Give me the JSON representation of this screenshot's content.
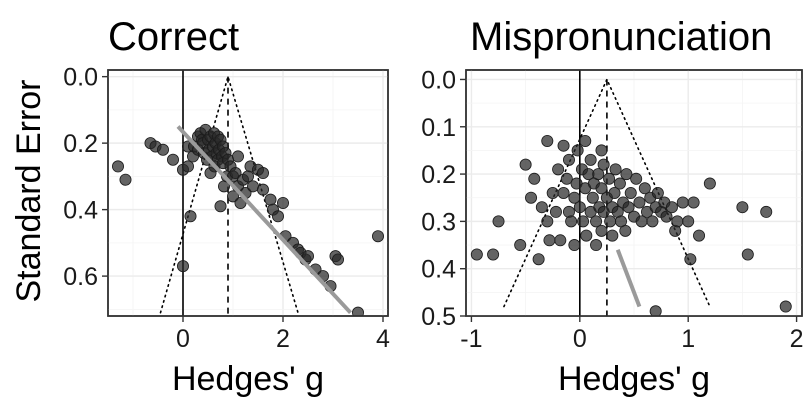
{
  "ylabel": "Standard Error",
  "chart_data": [
    {
      "type": "scatter",
      "title": "Correct",
      "xlabel": "Hedges' g",
      "ylabel": "Standard Error",
      "xlim": [
        -1.5,
        4.1
      ],
      "ylim": [
        0.72,
        -0.02
      ],
      "y_reversed": true,
      "xticks": [
        0,
        2,
        4
      ],
      "xtick_labels": [
        "0",
        "2",
        "4"
      ],
      "yticks": [
        0.0,
        0.2,
        0.4,
        0.6
      ],
      "ytick_labels": [
        "0.0",
        "0.2",
        "0.4",
        "0.6"
      ],
      "grid": true,
      "null_effect": 0,
      "mean_effect": 0.9,
      "funnel": [
        [
          -0.45,
          0.71
        ],
        [
          0.9,
          0.0
        ],
        [
          2.3,
          0.71
        ]
      ],
      "regression_line": [
        [
          -0.1,
          0.15
        ],
        [
          3.35,
          0.71
        ]
      ],
      "points": [
        [
          -1.3,
          0.27
        ],
        [
          -1.15,
          0.31
        ],
        [
          -0.65,
          0.2
        ],
        [
          -0.55,
          0.21
        ],
        [
          -0.4,
          0.22
        ],
        [
          -0.2,
          0.25
        ],
        [
          0.0,
          0.28
        ],
        [
          0.1,
          0.27
        ],
        [
          0.1,
          0.21
        ],
        [
          0.15,
          0.42
        ],
        [
          0.2,
          0.24
        ],
        [
          0.22,
          0.21
        ],
        [
          0.3,
          0.18
        ],
        [
          0.3,
          0.22
        ],
        [
          0.35,
          0.17
        ],
        [
          0.38,
          0.19
        ],
        [
          0.4,
          0.2
        ],
        [
          0.42,
          0.23
        ],
        [
          0.45,
          0.16
        ],
        [
          0.48,
          0.25
        ],
        [
          0.5,
          0.19
        ],
        [
          0.52,
          0.22
        ],
        [
          0.55,
          0.18
        ],
        [
          0.55,
          0.29
        ],
        [
          0.58,
          0.24
        ],
        [
          0.6,
          0.21
        ],
        [
          0.62,
          0.17
        ],
        [
          0.63,
          0.27
        ],
        [
          0.65,
          0.2
        ],
        [
          0.67,
          0.23
        ],
        [
          0.7,
          0.18
        ],
        [
          0.7,
          0.25
        ],
        [
          0.72,
          0.22
        ],
        [
          0.75,
          0.19
        ],
        [
          0.75,
          0.39
        ],
        [
          0.78,
          0.24
        ],
        [
          0.8,
          0.26
        ],
        [
          0.8,
          0.21
        ],
        [
          0.82,
          0.33
        ],
        [
          0.85,
          0.23
        ],
        [
          0.88,
          0.3
        ],
        [
          0.9,
          0.25
        ],
        [
          0.95,
          0.27
        ],
        [
          1.0,
          0.36
        ],
        [
          1.0,
          0.3
        ],
        [
          1.05,
          0.29
        ],
        [
          1.1,
          0.24
        ],
        [
          1.1,
          0.33
        ],
        [
          1.15,
          0.38
        ],
        [
          1.2,
          0.31
        ],
        [
          1.25,
          0.35
        ],
        [
          1.3,
          0.3
        ],
        [
          1.35,
          0.27
        ],
        [
          1.4,
          0.33
        ],
        [
          1.5,
          0.28
        ],
        [
          1.6,
          0.29
        ],
        [
          1.6,
          0.34
        ],
        [
          1.75,
          0.37
        ],
        [
          1.8,
          0.4
        ],
        [
          1.9,
          0.42
        ],
        [
          2.0,
          0.38
        ],
        [
          2.05,
          0.48
        ],
        [
          2.2,
          0.5
        ],
        [
          2.3,
          0.52
        ],
        [
          2.35,
          0.53
        ],
        [
          2.45,
          0.55
        ],
        [
          2.5,
          0.54
        ],
        [
          2.65,
          0.58
        ],
        [
          2.8,
          0.6
        ],
        [
          2.95,
          0.63
        ],
        [
          3.05,
          0.54
        ],
        [
          3.1,
          0.55
        ],
        [
          3.5,
          0.71
        ],
        [
          3.9,
          0.48
        ],
        [
          0.0,
          0.57
        ]
      ]
    },
    {
      "type": "scatter",
      "title": "Mispronunciation",
      "xlabel": "Hedges' g",
      "ylabel": "",
      "xlim": [
        -1.05,
        2.05
      ],
      "ylim": [
        0.5,
        -0.02
      ],
      "y_reversed": true,
      "xticks": [
        -1,
        0,
        1,
        2
      ],
      "xtick_labels": [
        "-1",
        "0",
        "1",
        "2"
      ],
      "yticks": [
        0.0,
        0.1,
        0.2,
        0.3,
        0.4,
        0.5
      ],
      "ytick_labels": [
        "0.0",
        "0.1",
        "0.2",
        "0.3",
        "0.4",
        "0.5"
      ],
      "grid": true,
      "null_effect": 0,
      "mean_effect": 0.25,
      "funnel": [
        [
          -0.7,
          0.48
        ],
        [
          0.25,
          0.0
        ],
        [
          1.2,
          0.48
        ]
      ],
      "regression_line": [
        [
          0.35,
          0.36
        ],
        [
          0.55,
          0.48
        ]
      ],
      "points": [
        [
          -0.95,
          0.37
        ],
        [
          -0.8,
          0.37
        ],
        [
          -0.75,
          0.3
        ],
        [
          -0.55,
          0.35
        ],
        [
          -0.5,
          0.18
        ],
        [
          -0.45,
          0.25
        ],
        [
          -0.42,
          0.21
        ],
        [
          -0.38,
          0.38
        ],
        [
          -0.35,
          0.27
        ],
        [
          -0.3,
          0.3
        ],
        [
          -0.28,
          0.34
        ],
        [
          -0.25,
          0.24
        ],
        [
          -0.22,
          0.28
        ],
        [
          -0.2,
          0.19
        ],
        [
          -0.18,
          0.34
        ],
        [
          -0.15,
          0.24
        ],
        [
          -0.12,
          0.21
        ],
        [
          -0.1,
          0.17
        ],
        [
          -0.1,
          0.28
        ],
        [
          -0.08,
          0.3
        ],
        [
          -0.05,
          0.25
        ],
        [
          -0.05,
          0.35
        ],
        [
          -0.03,
          0.22
        ],
        [
          -0.02,
          0.15
        ],
        [
          0.0,
          0.27
        ],
        [
          0.02,
          0.19
        ],
        [
          0.03,
          0.3
        ],
        [
          0.05,
          0.23
        ],
        [
          0.06,
          0.33
        ],
        [
          0.08,
          0.2
        ],
        [
          0.1,
          0.28
        ],
        [
          0.1,
          0.17
        ],
        [
          0.12,
          0.25
        ],
        [
          0.13,
          0.22
        ],
        [
          0.15,
          0.3
        ],
        [
          0.15,
          0.35
        ],
        [
          0.17,
          0.2
        ],
        [
          0.18,
          0.27
        ],
        [
          0.2,
          0.23
        ],
        [
          0.2,
          0.32
        ],
        [
          0.22,
          0.18
        ],
        [
          0.22,
          0.28
        ],
        [
          0.25,
          0.25
        ],
        [
          0.27,
          0.21
        ],
        [
          0.28,
          0.3
        ],
        [
          0.3,
          0.27
        ],
        [
          0.3,
          0.33
        ],
        [
          0.32,
          0.24
        ],
        [
          0.33,
          0.19
        ],
        [
          0.35,
          0.28
        ],
        [
          0.37,
          0.22
        ],
        [
          0.38,
          0.3
        ],
        [
          0.4,
          0.26
        ],
        [
          0.42,
          0.32
        ],
        [
          0.43,
          0.2
        ],
        [
          0.45,
          0.27
        ],
        [
          0.47,
          0.24
        ],
        [
          0.5,
          0.29
        ],
        [
          0.52,
          0.21
        ],
        [
          0.55,
          0.26
        ],
        [
          0.57,
          0.3
        ],
        [
          0.6,
          0.23
        ],
        [
          0.62,
          0.28
        ],
        [
          0.65,
          0.25
        ],
        [
          0.67,
          0.3
        ],
        [
          0.7,
          0.27
        ],
        [
          0.72,
          0.24
        ],
        [
          0.75,
          0.28
        ],
        [
          0.78,
          0.26
        ],
        [
          0.8,
          0.29
        ],
        [
          0.85,
          0.27
        ],
        [
          0.88,
          0.32
        ],
        [
          0.9,
          0.3
        ],
        [
          0.95,
          0.26
        ],
        [
          1.0,
          0.3
        ],
        [
          1.02,
          0.38
        ],
        [
          1.05,
          0.26
        ],
        [
          1.1,
          0.33
        ],
        [
          1.2,
          0.22
        ],
        [
          1.5,
          0.27
        ],
        [
          1.55,
          0.37
        ],
        [
          1.72,
          0.28
        ],
        [
          1.9,
          0.48
        ],
        [
          -0.3,
          0.13
        ],
        [
          -0.15,
          0.14
        ],
        [
          0.05,
          0.13
        ],
        [
          0.2,
          0.15
        ],
        [
          0.7,
          0.49
        ]
      ]
    }
  ]
}
